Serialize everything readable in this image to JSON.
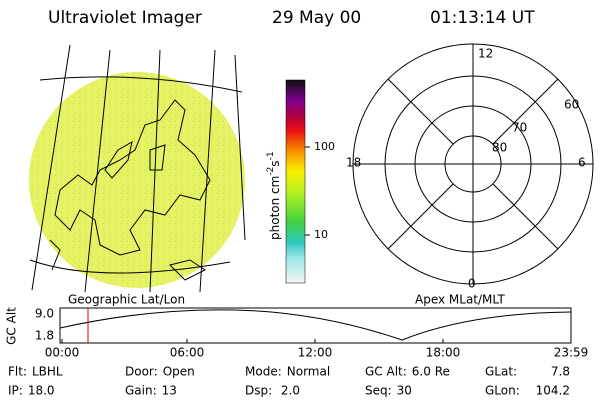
{
  "header": {
    "title": "Ultraviolet Imager",
    "date": "29 May 00",
    "time": "01:13:14 UT"
  },
  "colorbar": {
    "unit": "photon cm",
    "exp1": "-2",
    "unit2": "s",
    "exp2": "-1",
    "ticks": [
      "100",
      "10"
    ]
  },
  "polar": {
    "mlt": {
      "top": "12",
      "left": "18",
      "right": "6",
      "bottom": "0"
    },
    "mlat": [
      "60",
      "70",
      "80"
    ]
  },
  "captions": {
    "left": "Geographic Lat/Lon",
    "right": "Apex MLat/MLT"
  },
  "altitude": {
    "label": "GC Alt",
    "ticks": [
      "9.0",
      "1.8"
    ],
    "times": [
      "00:00",
      "06:00",
      "12:00",
      "18:00",
      "23:59"
    ]
  },
  "footer": {
    "rows": [
      [
        {
          "label": "Flt:",
          "value": "LBHL"
        },
        {
          "label": "Door:",
          "value": "Open"
        },
        {
          "label": "Mode:",
          "value": "Normal"
        },
        {
          "label": "GC Alt:",
          "value": "6.0 Re"
        },
        {
          "label": "GLat:",
          "value": "7.8"
        }
      ],
      [
        {
          "label": "IP:",
          "value": "18.0"
        },
        {
          "label": "Gain:",
          "value": "13"
        },
        {
          "label": "Dsp:",
          "value": "2.0"
        },
        {
          "label": "Seq:",
          "value": "30"
        },
        {
          "label": "GLon:",
          "value": "104.2"
        }
      ]
    ]
  }
}
